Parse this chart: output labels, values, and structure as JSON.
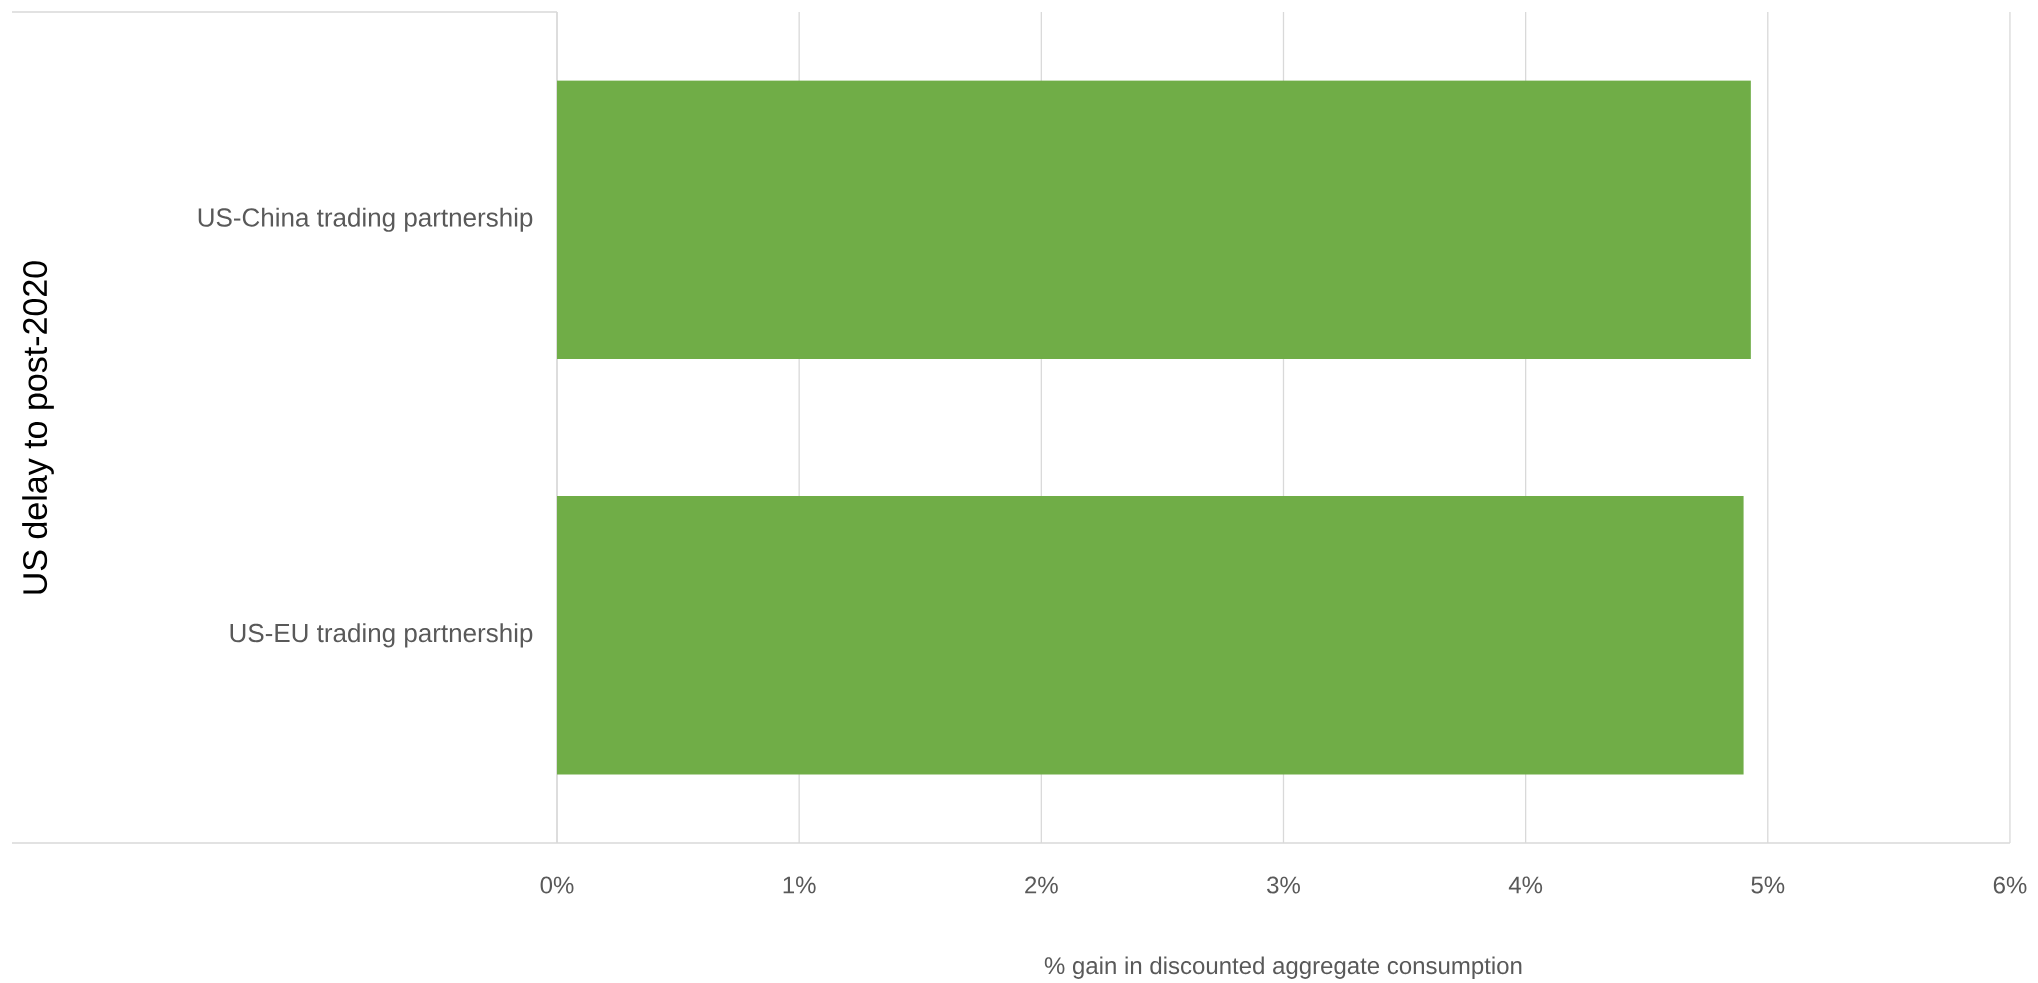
{
  "chart_data": {
    "type": "bar",
    "orientation": "horizontal",
    "ylabel": "US delay to post-2020",
    "xlabel": "% gain in discounted aggregate consumption",
    "categories": [
      "US-China trading partnership",
      "US-EU trading partnership"
    ],
    "values": [
      4.93,
      4.9
    ],
    "color": "#70ad47",
    "xlim": [
      0,
      6
    ],
    "xticks": [
      {
        "value": 0,
        "label": "0%"
      },
      {
        "value": 1,
        "label": "1%"
      },
      {
        "value": 2,
        "label": "2%"
      },
      {
        "value": 3,
        "label": "3%"
      },
      {
        "value": 4,
        "label": "4%"
      },
      {
        "value": 5,
        "label": "5%"
      },
      {
        "value": 6,
        "label": "6%"
      }
    ],
    "grid": "x"
  }
}
